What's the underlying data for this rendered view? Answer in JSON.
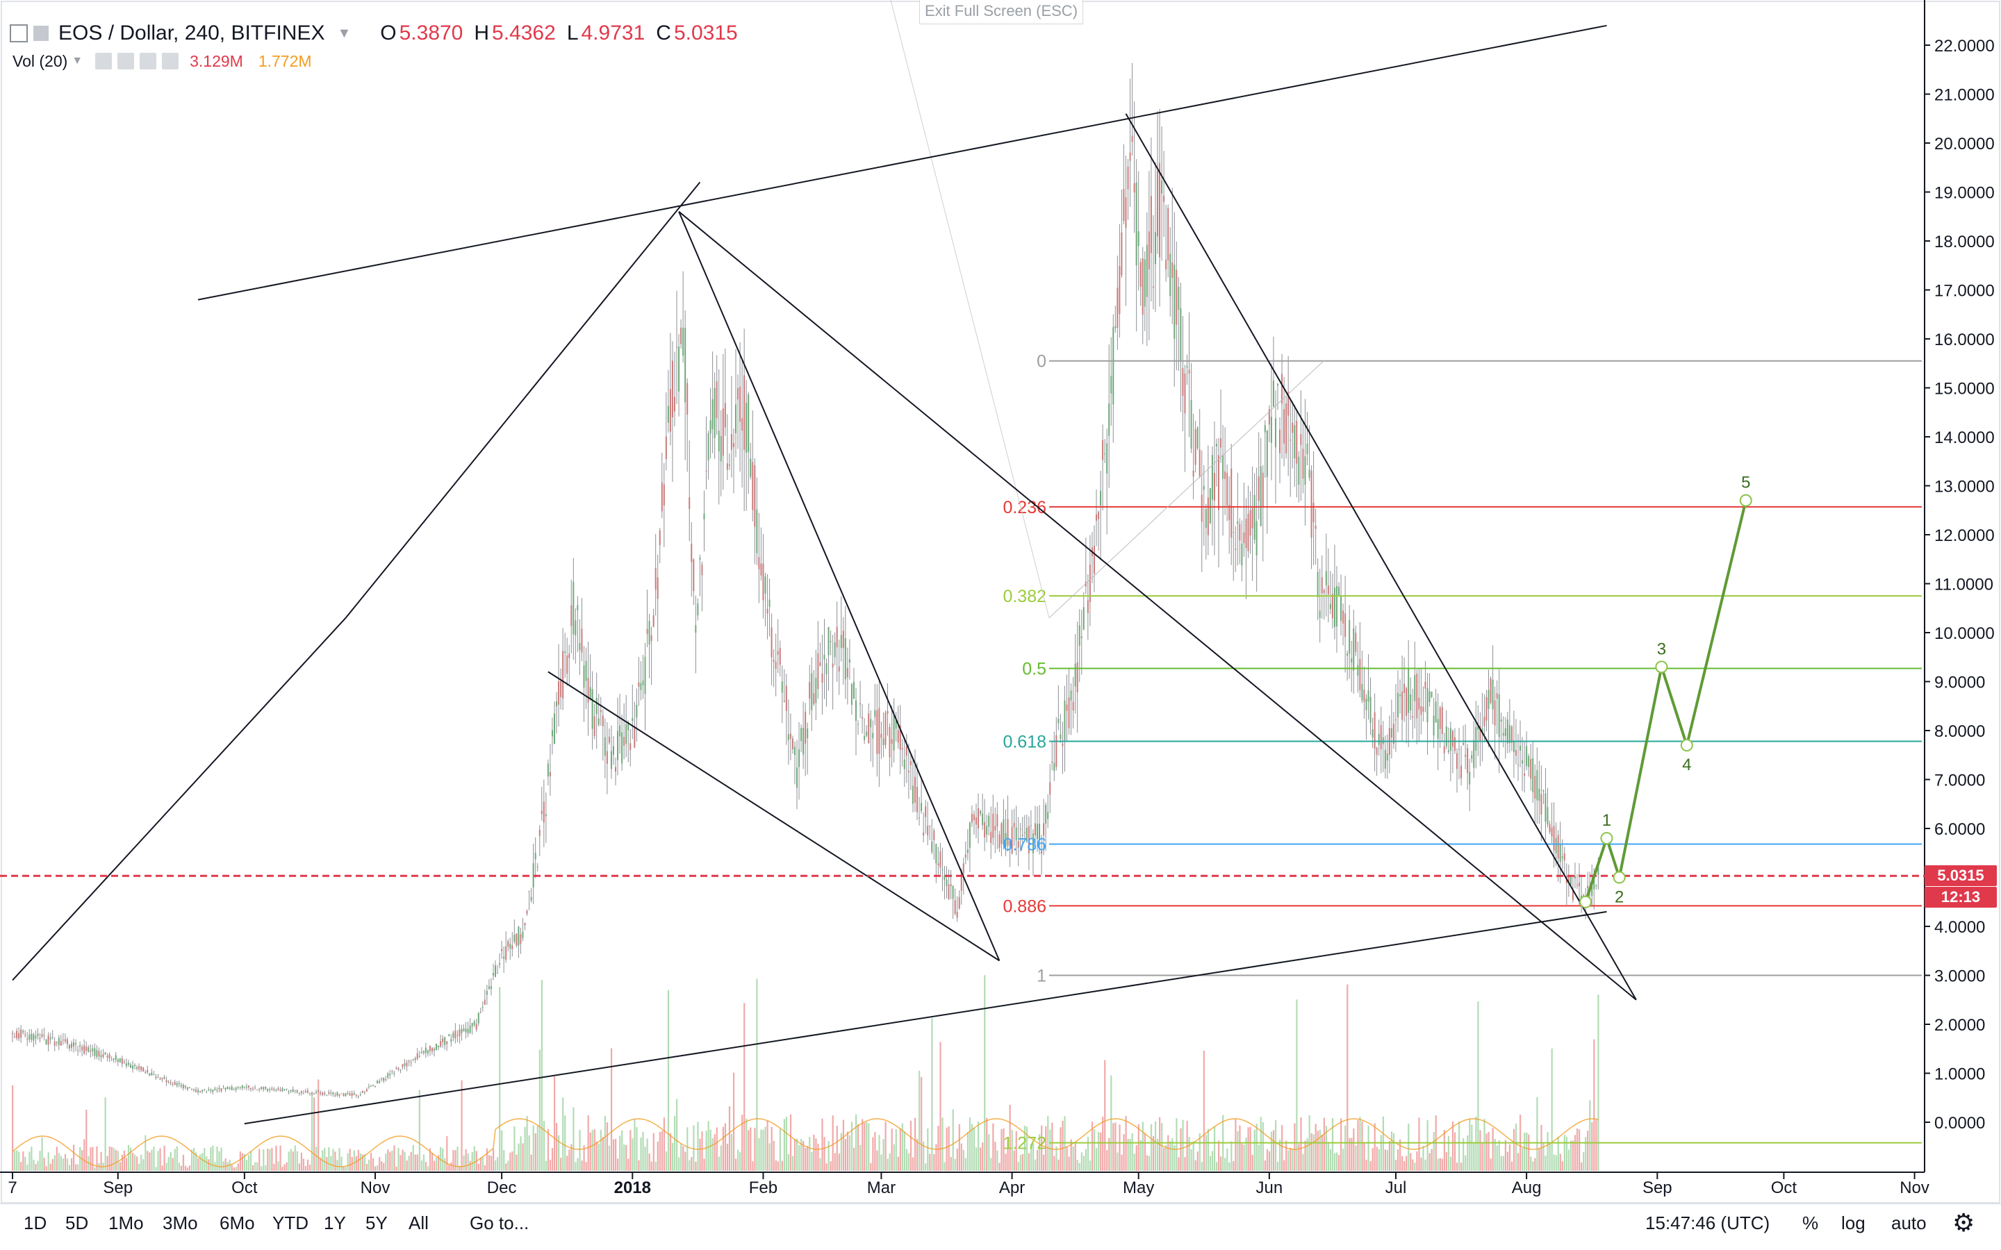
{
  "header": {
    "symbol": "EOS / Dollar, 240, BITFINEX",
    "open_label": "O",
    "open": "5.3870",
    "high_label": "H",
    "high": "5.4362",
    "low_label": "L",
    "low": "4.9731",
    "close_label": "C",
    "close": "5.0315",
    "volume_label": "Vol (20)",
    "volume_value": "3.129M",
    "volume_ma": "1.772M",
    "exit_fullscreen": "Exit Full Screen (ESC)"
  },
  "toolbar": {
    "ranges": [
      "1D",
      "5D",
      "1Mo",
      "3Mo",
      "6Mo",
      "YTD",
      "1Y",
      "5Y",
      "All"
    ],
    "goto": "Go to...",
    "clock": "15:47:46 (UTC)",
    "percent": "%",
    "log": "log",
    "auto": "auto"
  },
  "chart_data": {
    "type": "line",
    "title": "EOS / Dollar, 240, BITFINEX",
    "y_axis": {
      "ticks": [
        "22.0000",
        "21.0000",
        "20.0000",
        "19.0000",
        "18.0000",
        "17.0000",
        "16.0000",
        "15.0000",
        "14.0000",
        "13.0000",
        "12.0000",
        "11.0000",
        "10.0000",
        "9.0000",
        "8.0000",
        "7.0000",
        "6.0000",
        "5.0000",
        "4.0000",
        "3.0000",
        "2.0000",
        "1.0000",
        "0.0000"
      ],
      "ylim": [
        -1.0,
        22.8
      ],
      "side": "right"
    },
    "x_axis": {
      "ticks": [
        "7",
        "Sep",
        "Oct",
        "Nov",
        "Dec",
        "2018",
        "Feb",
        "Mar",
        "Apr",
        "May",
        "Jun",
        "Jul",
        "Aug",
        "Sep",
        "Oct",
        "Nov"
      ]
    },
    "current_price": "5.0315",
    "countdown": "12:13",
    "price_path": [
      [
        "2017-08-07",
        1.82
      ],
      [
        "2017-08-20",
        1.6
      ],
      [
        "2017-09-01",
        1.28
      ],
      [
        "2017-09-10",
        0.95
      ],
      [
        "2017-09-20",
        0.62
      ],
      [
        "2017-10-01",
        0.72
      ],
      [
        "2017-10-15",
        0.62
      ],
      [
        "2017-10-28",
        0.55
      ],
      [
        "2017-11-05",
        1.0
      ],
      [
        "2017-11-15",
        1.55
      ],
      [
        "2017-11-25",
        2.0
      ],
      [
        "2017-12-01",
        3.4
      ],
      [
        "2017-12-06",
        3.9
      ],
      [
        "2017-12-10",
        5.7
      ],
      [
        "2017-12-14",
        8.2
      ],
      [
        "2017-12-18",
        10.6
      ],
      [
        "2017-12-22",
        8.6
      ],
      [
        "2017-12-27",
        7.5
      ],
      [
        "2018-01-01",
        7.9
      ],
      [
        "2018-01-06",
        10.2
      ],
      [
        "2018-01-10",
        14.5
      ],
      [
        "2018-01-13",
        16.5
      ],
      [
        "2018-01-16",
        9.8
      ],
      [
        "2018-01-20",
        14.6
      ],
      [
        "2018-01-24",
        13.9
      ],
      [
        "2018-01-28",
        14.5
      ],
      [
        "2018-02-01",
        11.0
      ],
      [
        "2018-02-05",
        9.2
      ],
      [
        "2018-02-09",
        7.2
      ],
      [
        "2018-02-13",
        9.0
      ],
      [
        "2018-02-17",
        9.7
      ],
      [
        "2018-02-21",
        9.4
      ],
      [
        "2018-02-25",
        8.0
      ],
      [
        "2018-03-01",
        8.0
      ],
      [
        "2018-03-05",
        7.8
      ],
      [
        "2018-03-10",
        6.4
      ],
      [
        "2018-03-15",
        5.4
      ],
      [
        "2018-03-19",
        4.3
      ],
      [
        "2018-03-23",
        6.5
      ],
      [
        "2018-03-27",
        6.0
      ],
      [
        "2018-04-02",
        5.8
      ],
      [
        "2018-04-08",
        5.8
      ],
      [
        "2018-04-12",
        7.8
      ],
      [
        "2018-04-16",
        9.0
      ],
      [
        "2018-04-20",
        11.5
      ],
      [
        "2018-04-23",
        13.5
      ],
      [
        "2018-04-26",
        16.5
      ],
      [
        "2018-04-29",
        19.8
      ],
      [
        "2018-05-02",
        17.2
      ],
      [
        "2018-05-06",
        18.5
      ],
      [
        "2018-05-10",
        16.8
      ],
      [
        "2018-05-13",
        14.5
      ],
      [
        "2018-05-17",
        12.5
      ],
      [
        "2018-05-21",
        13.5
      ],
      [
        "2018-05-25",
        11.8
      ],
      [
        "2018-05-29",
        12.3
      ],
      [
        "2018-06-02",
        14.7
      ],
      [
        "2018-06-06",
        14.2
      ],
      [
        "2018-06-10",
        13.5
      ],
      [
        "2018-06-13",
        10.8
      ],
      [
        "2018-06-17",
        10.5
      ],
      [
        "2018-06-21",
        9.8
      ],
      [
        "2018-06-25",
        8.2
      ],
      [
        "2018-06-29",
        7.6
      ],
      [
        "2018-07-03",
        8.8
      ],
      [
        "2018-07-07",
        8.6
      ],
      [
        "2018-07-11",
        8.2
      ],
      [
        "2018-07-15",
        7.6
      ],
      [
        "2018-07-19",
        7.2
      ],
      [
        "2018-07-23",
        8.9
      ],
      [
        "2018-07-27",
        8.0
      ],
      [
        "2018-07-31",
        7.5
      ],
      [
        "2018-08-04",
        6.8
      ],
      [
        "2018-08-08",
        5.7
      ],
      [
        "2018-08-12",
        4.8
      ],
      [
        "2018-08-15",
        4.5
      ],
      [
        "2018-08-18",
        5.03
      ]
    ],
    "projection": [
      [
        "2018-08-15",
        4.5,
        ""
      ],
      [
        "2018-08-20",
        5.8,
        "1"
      ],
      [
        "2018-08-23",
        5.0,
        "2"
      ],
      [
        "2018-09-02",
        9.3,
        "3"
      ],
      [
        "2018-09-08",
        7.7,
        "4"
      ],
      [
        "2018-09-22",
        12.7,
        "5"
      ]
    ],
    "fibonacci": [
      {
        "level": "0",
        "price": 15.55,
        "color": "#9e9e9e"
      },
      {
        "level": "0.236",
        "price": 12.57,
        "color": "#e53935"
      },
      {
        "level": "0.382",
        "price": 10.75,
        "color": "#9ccc3c"
      },
      {
        "level": "0.5",
        "price": 9.27,
        "color": "#66bb2f"
      },
      {
        "level": "0.618",
        "price": 7.78,
        "color": "#26a69a"
      },
      {
        "level": "0.786",
        "price": 5.68,
        "color": "#42a5f5"
      },
      {
        "level": "0.886",
        "price": 4.42,
        "color": "#e53935"
      },
      {
        "level": "1",
        "price": 3.0,
        "color": "#9e9e9e"
      },
      {
        "level": "1.272",
        "price": -0.42,
        "color": "#9ccc3c"
      }
    ],
    "trendlines": [
      [
        [
          "2017-08-07",
          2.9
        ],
        [
          "2017-10-25",
          10.3
        ]
      ],
      [
        [
          "2017-10-25",
          10.3
        ],
        [
          "2018-01-17",
          19.2
        ]
      ],
      [
        [
          "2017-09-20",
          16.8
        ],
        [
          "2018-08-20",
          22.4
        ]
      ],
      [
        [
          "2017-10-01",
          -0.03
        ],
        [
          "2018-08-20",
          4.3
        ]
      ],
      [
        [
          "2017-12-12",
          9.2
        ],
        [
          "2018-03-29",
          3.3
        ]
      ],
      [
        [
          "2018-01-12",
          18.6
        ],
        [
          "2018-03-29",
          3.3
        ]
      ],
      [
        [
          "2018-01-12",
          18.6
        ],
        [
          "2018-08-27",
          2.5
        ]
      ],
      [
        [
          "2018-04-28",
          20.6
        ],
        [
          "2018-08-27",
          2.5
        ]
      ]
    ],
    "volume": {
      "color_up": "#a5d6a7",
      "color_down": "#ef9a9a",
      "ma_color": "#f39c1f"
    }
  }
}
